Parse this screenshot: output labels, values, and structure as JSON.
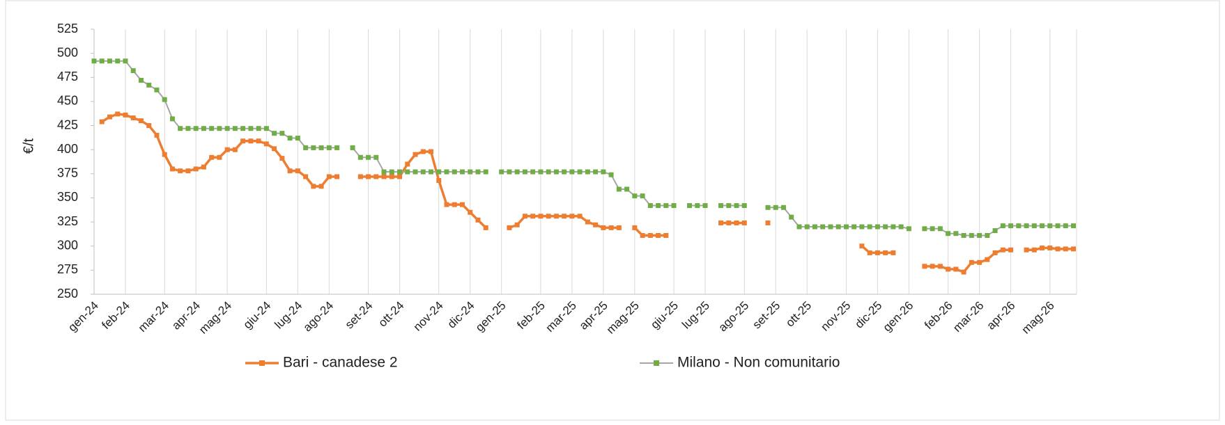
{
  "chart_data": {
    "type": "line",
    "ylabel": "€/t",
    "categories": [
      "gen-24",
      null,
      null,
      null,
      "feb-24",
      null,
      null,
      null,
      null,
      "mar-24",
      null,
      null,
      null,
      "apr-24",
      null,
      null,
      null,
      "mag-24",
      null,
      null,
      null,
      null,
      "giu-24",
      null,
      null,
      null,
      "lug-24",
      null,
      null,
      null,
      "ago-24",
      null,
      null,
      null,
      null,
      "set-24",
      null,
      null,
      null,
      "ott-24",
      null,
      null,
      null,
      null,
      "nov-24",
      null,
      null,
      null,
      "dic-24",
      null,
      null,
      null,
      "gen-25",
      null,
      null,
      null,
      null,
      "feb-25",
      null,
      null,
      null,
      "mar-25",
      null,
      null,
      null,
      "apr-25",
      null,
      null,
      null,
      "mag-25",
      null,
      null,
      null,
      null,
      "giu-25",
      null,
      null,
      null,
      "lug-25",
      null,
      null,
      null,
      null,
      "ago-25",
      null,
      null,
      null,
      "set-25",
      null,
      null,
      null,
      "ott-25",
      null,
      null,
      null,
      null,
      "nov-25",
      null,
      null,
      null,
      "dic-25",
      null,
      null,
      null,
      "gen-26",
      null,
      null,
      null,
      null,
      "feb-26",
      null,
      null,
      null,
      "mar-26",
      null,
      null,
      null,
      "apr-26",
      null,
      null,
      null,
      null,
      "mag-26",
      null,
      null,
      null
    ],
    "series": [
      {
        "name": "Bari - canadese 2",
        "color": "#ED7D31",
        "line_color": "#ED7D31",
        "values": [
          null,
          429,
          434,
          437,
          436,
          433,
          430,
          425,
          415,
          395,
          380,
          378,
          378,
          380,
          382,
          392,
          392,
          400,
          400,
          409,
          409,
          409,
          406,
          401,
          391,
          378,
          378,
          372,
          362,
          362,
          372,
          372,
          null,
          null,
          372,
          372,
          372,
          372,
          372,
          372,
          385,
          395,
          398,
          398,
          368,
          343,
          343,
          343,
          335,
          327,
          319,
          null,
          null,
          319,
          322,
          331,
          331,
          331,
          331,
          331,
          331,
          331,
          331,
          325,
          322,
          319,
          319,
          319,
          null,
          319,
          311,
          311,
          311,
          311,
          null,
          null,
          null,
          null,
          null,
          null,
          324,
          324,
          324,
          324,
          null,
          null,
          324,
          null,
          null,
          null,
          null,
          null,
          null,
          null,
          null,
          null,
          null,
          null,
          300,
          293,
          293,
          293,
          293,
          null,
          null,
          null,
          279,
          279,
          279,
          276,
          276,
          273,
          283,
          283,
          286,
          293,
          296,
          296,
          null,
          296,
          296,
          298,
          298,
          297,
          297,
          297
        ]
      },
      {
        "name": "Milano - Non comunitario",
        "color": "#70AD47",
        "line_color": "#A5A5A5",
        "values": [
          492,
          492,
          492,
          492,
          492,
          482,
          472,
          467,
          462,
          452,
          432,
          422,
          422,
          422,
          422,
          422,
          422,
          422,
          422,
          422,
          422,
          422,
          422,
          417,
          417,
          412,
          412,
          402,
          402,
          402,
          402,
          402,
          null,
          402,
          392,
          392,
          392,
          377,
          377,
          377,
          377,
          377,
          377,
          377,
          377,
          377,
          377,
          377,
          377,
          377,
          377,
          null,
          377,
          377,
          377,
          377,
          377,
          377,
          377,
          377,
          377,
          377,
          377,
          377,
          377,
          377,
          374,
          359,
          359,
          352,
          352,
          342,
          342,
          342,
          342,
          null,
          342,
          342,
          342,
          null,
          342,
          342,
          342,
          342,
          null,
          null,
          340,
          340,
          340,
          330,
          320,
          320,
          320,
          320,
          320,
          320,
          320,
          320,
          320,
          320,
          320,
          320,
          320,
          320,
          318,
          null,
          318,
          318,
          318,
          313,
          313,
          311,
          311,
          311,
          311,
          316,
          321,
          321,
          321,
          321,
          321,
          321,
          321,
          321,
          321,
          321
        ]
      }
    ],
    "ylim": [
      250,
      525
    ],
    "yticks": [
      250,
      275,
      300,
      325,
      350,
      375,
      400,
      425,
      450,
      475,
      500,
      525
    ],
    "grid": "x"
  }
}
